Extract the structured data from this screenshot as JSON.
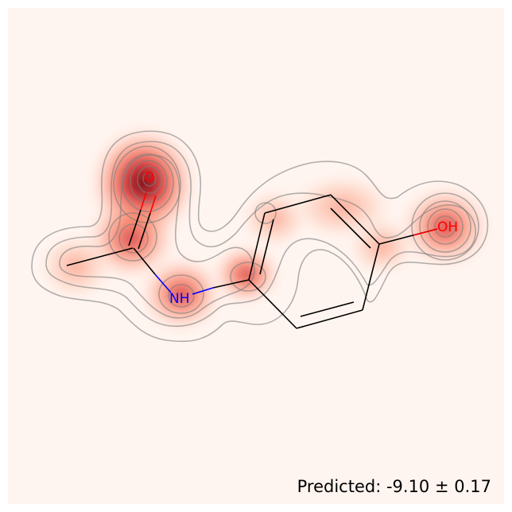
{
  "molecule": {
    "atoms": {
      "carbonyl_oxygen": {
        "text": "O",
        "color": "#ff0000"
      },
      "amide_nitrogen": {
        "text": "NH",
        "color": "#0000ff"
      },
      "hydroxyl": {
        "text": "OH",
        "color": "#ff0000"
      }
    },
    "bond_color": "#000000"
  },
  "heatmap": {
    "colormap": "Reds",
    "background": "#fff5f0",
    "contour_color": "#7f7f7f"
  },
  "caption": {
    "text": "Predicted: -9.10 ± 0.17"
  }
}
